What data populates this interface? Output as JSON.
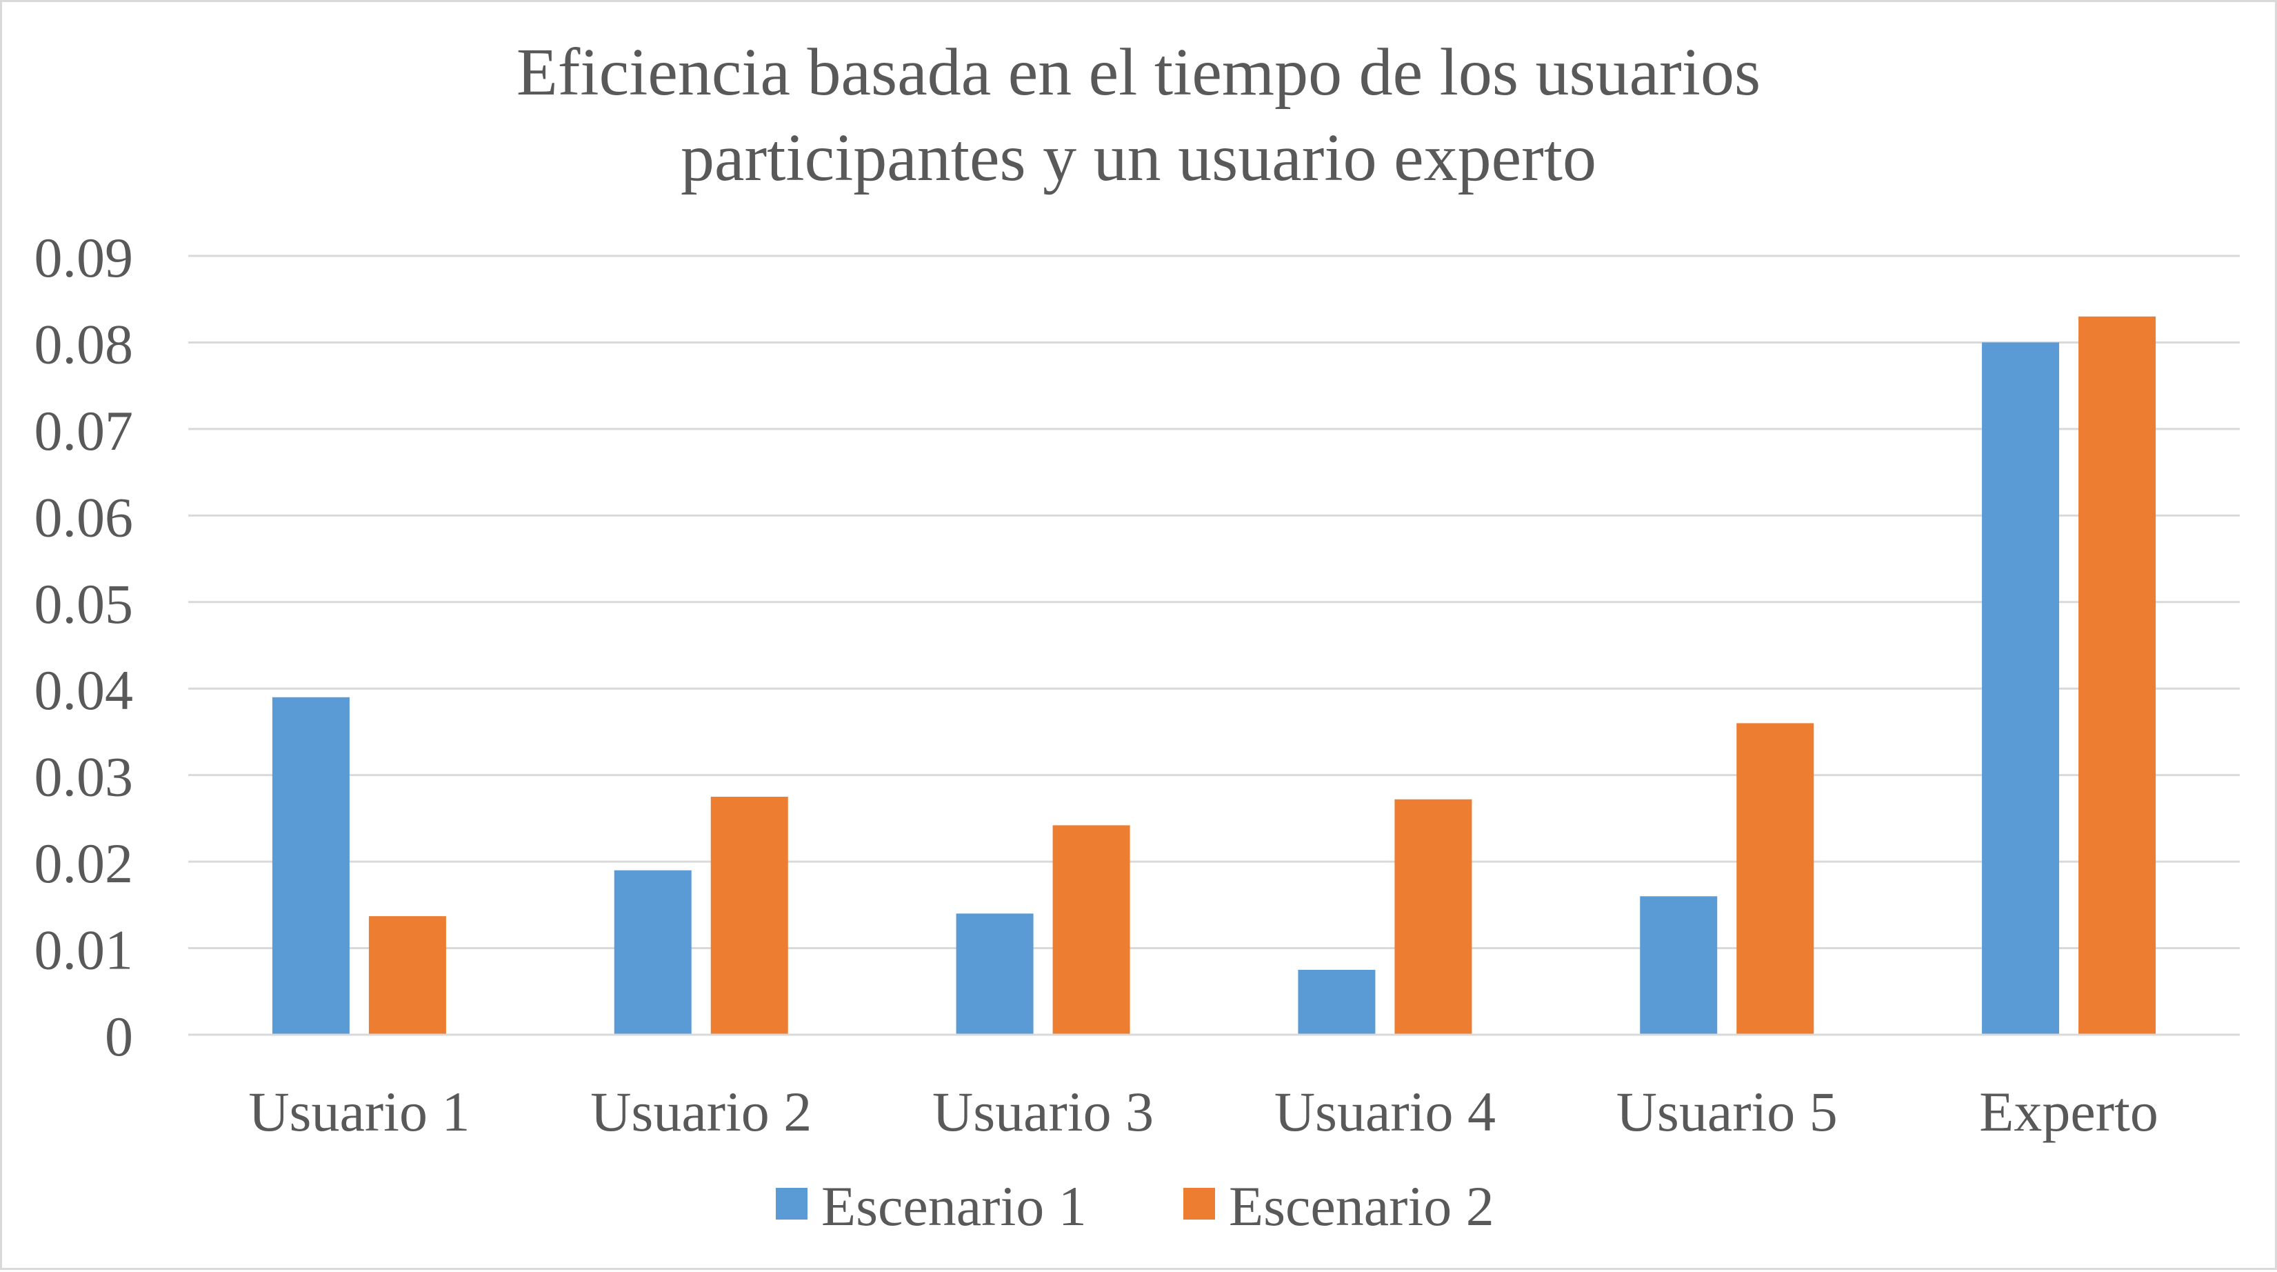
{
  "chart_data": {
    "type": "bar",
    "title": "Eficiencia basada en el tiempo de los usuarios\nparticipantes y un usuario experto",
    "categories": [
      "Usuario 1",
      "Usuario 2",
      "Usuario 3",
      "Usuario 4",
      "Usuario 5",
      "Experto"
    ],
    "series": [
      {
        "name": "Escenario 1",
        "color": "#5b9bd5",
        "values": [
          0.039,
          0.019,
          0.014,
          0.0075,
          0.016,
          0.08
        ]
      },
      {
        "name": "Escenario 2",
        "color": "#ed7d31",
        "values": [
          0.0137,
          0.0275,
          0.0242,
          0.0272,
          0.036,
          0.083
        ]
      }
    ],
    "ylim": [
      0,
      0.09
    ],
    "yticks": [
      "0",
      "0.01",
      "0.02",
      "0.03",
      "0.04",
      "0.05",
      "0.06",
      "0.07",
      "0.08",
      "0.09"
    ],
    "xlabel": "",
    "ylabel": "",
    "grid": true,
    "legend_position": "bottom"
  }
}
